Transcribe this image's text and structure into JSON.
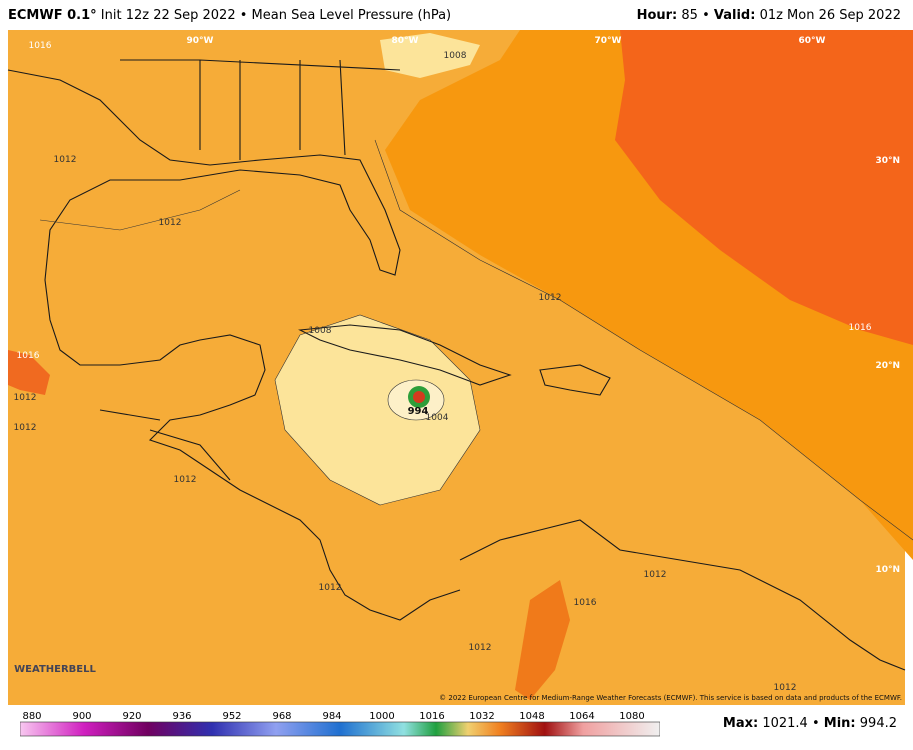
{
  "header": {
    "model": "ECMWF 0.1°",
    "subtitle": "Init 12z 22 Sep 2022 • Mean Sea Level Pressure (hPa)",
    "right": [
      {
        "label": "Hour:",
        "value": "85 •"
      },
      {
        "label": "Valid:",
        "value": "01z Mon 26 Sep 2022"
      }
    ]
  },
  "map": {
    "lon_labels": [
      "90°W",
      "80°W",
      "70°W",
      "60°W"
    ],
    "lat_labels": [
      "30°N",
      "20°N",
      "10°N"
    ],
    "contour_labels": [
      "1016",
      "1012",
      "1012",
      "1008",
      "1012",
      "1016",
      "1012",
      "1012",
      "1012",
      "1008",
      "994",
      "1004",
      "1012",
      "1012",
      "1016",
      "1012",
      "1012",
      "1016"
    ],
    "copyright": "© 2022 European Centre for Medium-Range Weather Forecasts (ECMWF). This service is based on data and products of the ECMWF.",
    "logo": "WEATHERBELL"
  },
  "colorbar": {
    "labels": [
      "880",
      "900",
      "920",
      "936",
      "952",
      "968",
      "984",
      "1000",
      "1016",
      "1032",
      "1048",
      "1064",
      "1080"
    ]
  },
  "footer": [
    {
      "label": "Max:",
      "value": "1021.4 •"
    },
    {
      "label": "Min:",
      "value": "994.2"
    }
  ]
}
